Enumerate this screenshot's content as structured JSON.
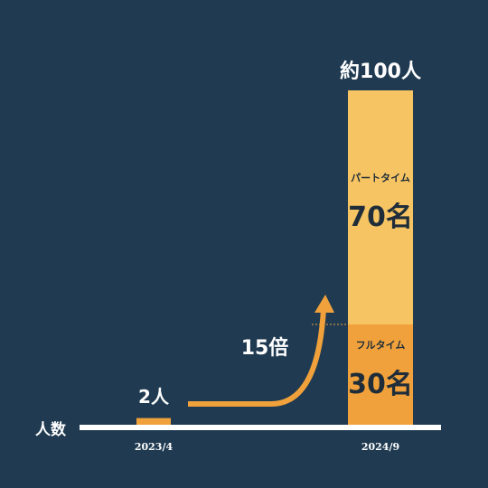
{
  "chart_data": {
    "type": "bar",
    "stacked": true,
    "categories": [
      "2023/4",
      "2024/9"
    ],
    "series": [
      {
        "name": "フルタイム",
        "color": "#f0a13b",
        "values": [
          2,
          30
        ],
        "value_labels": [
          "2人",
          "30名"
        ]
      },
      {
        "name": "パートタイム",
        "color": "#f6c462",
        "values": [
          null,
          70
        ],
        "value_labels": [
          null,
          "70名"
        ]
      }
    ],
    "ylabel": "人数",
    "total_label": "約100人",
    "growth_label": "15倍",
    "ylim": [
      0,
      100
    ]
  }
}
